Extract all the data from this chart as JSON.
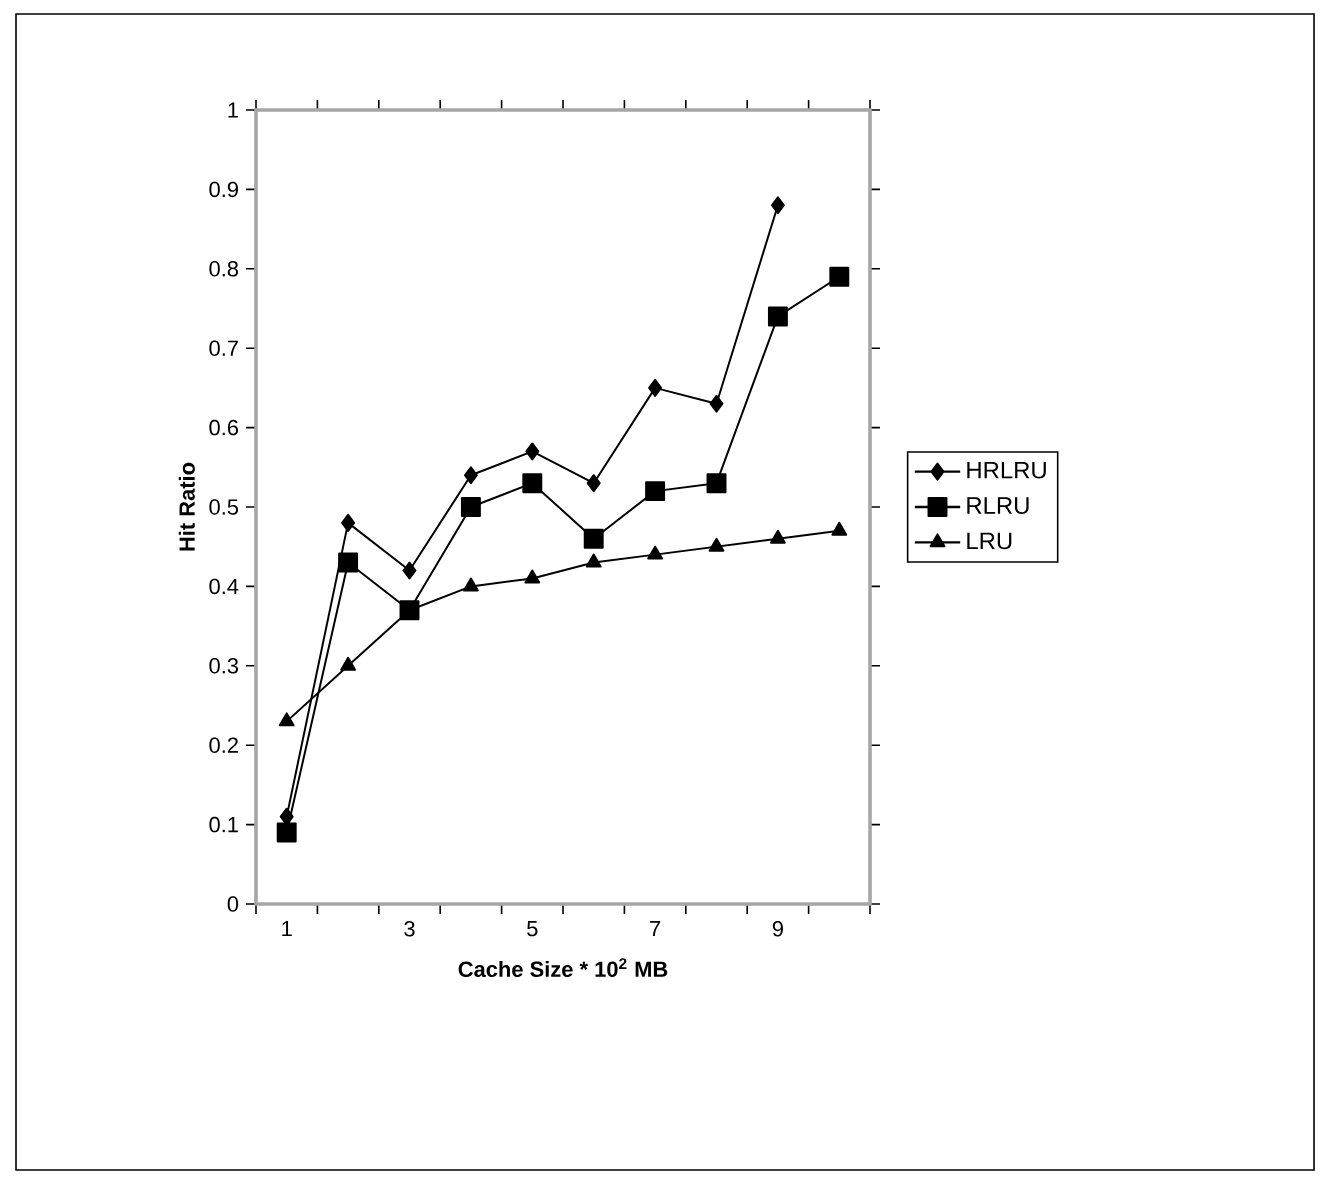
{
  "chart_data": {
    "type": "line",
    "xlabel": "Cache Size * 10$^{2}$ MB",
    "ylabel": "Hit Ratio",
    "categories": [
      "1",
      null,
      "3",
      null,
      "5",
      null,
      "7",
      null,
      "9",
      null
    ],
    "ylim": [
      0,
      1
    ],
    "yticks": [
      0,
      0.1,
      0.2,
      0.3,
      0.4,
      0.5,
      0.6,
      0.7,
      0.8,
      0.9,
      1
    ],
    "legend": "right",
    "line_style": "solid",
    "series": [
      {
        "name": "HRLRU",
        "color": "#000000",
        "marker": "diamond",
        "values": [
          0.11,
          0.48,
          0.42,
          0.54,
          0.57,
          0.53,
          0.65,
          0.63,
          0.88,
          null
        ]
      },
      {
        "name": "RLRU",
        "color": "#000000",
        "marker": "square",
        "values": [
          0.09,
          0.43,
          0.37,
          0.5,
          0.53,
          0.46,
          0.52,
          0.53,
          0.74,
          0.79
        ]
      },
      {
        "name": "LRU",
        "color": "#000000",
        "marker": "triangle",
        "values": [
          0.23,
          0.3,
          0.37,
          0.4,
          0.41,
          0.43,
          0.44,
          0.45,
          0.46,
          0.47
        ]
      }
    ]
  }
}
